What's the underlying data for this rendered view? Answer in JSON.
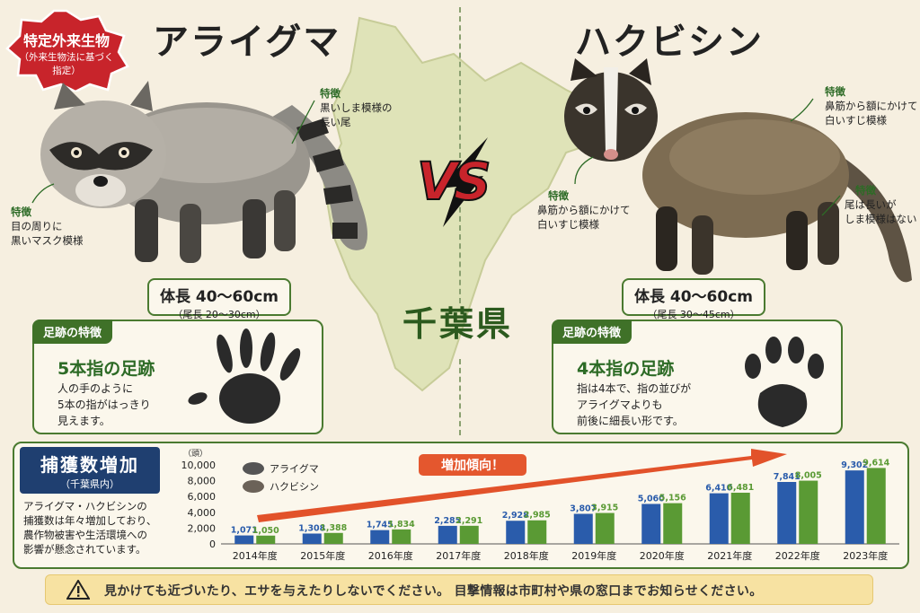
{
  "raccoon": {
    "name": "アライグマ",
    "badge_title": "特定外来生物",
    "badge_sub_1": "（外来生物法に基づく",
    "badge_sub_2": "指定）",
    "feature_tail": {
      "heading": "特徴",
      "line1": "黒いしま模様の",
      "line2": "長い尾"
    },
    "feature_face": {
      "heading": "特徴",
      "line1": "目の周りに",
      "line2": "黒いマスク模様"
    },
    "size_main": "体長 40～60cm",
    "size_sub": "（尾長 20～30cm）",
    "footprint_header": "足跡の特徴",
    "footprint_title": "5本指の足跡",
    "footprint_desc_1": "人の手のように",
    "footprint_desc_2": "5本の指がはっきり",
    "footprint_desc_3": "見えます。"
  },
  "civet": {
    "name": "ハクビシン",
    "feature_forehead_top": {
      "heading": "特徴",
      "line1": "鼻筋から額にかけて",
      "line2": "白いすじ模様"
    },
    "feature_forehead_side": {
      "heading": "特徴",
      "line1": "鼻筋から額にかけて",
      "line2": "白いすじ模様"
    },
    "feature_tail": {
      "heading": "特徴",
      "line1": "尾は長いが",
      "line2": "しま模様はない"
    },
    "size_main": "体長 40～60cm",
    "size_sub": "（尾長 30～45cm）",
    "footprint_header": "足跡の特徴",
    "footprint_title": "4本指の足跡",
    "footprint_desc_1": "指は4本で、指の並びが",
    "footprint_desc_2": "アライグマよりも",
    "footprint_desc_3": "前後に細長い形です。"
  },
  "vs_label": "VS",
  "prefecture": "千葉県",
  "chart_section": {
    "title": "捕獲数増加",
    "subtitle": "（千葉県内）",
    "desc_1": "アライグマ・ハクビシンの",
    "desc_2": "捕獲数は年々増加しており、",
    "desc_3": "農作物被害や生活環境への",
    "desc_4": "影響が懸念されています。",
    "trend_label": "増加傾向！"
  },
  "chart_data": {
    "type": "bar",
    "title": "",
    "xlabel": "",
    "ylabel": "（頭）",
    "ylim": [
      0,
      10000
    ],
    "yticks": [
      0,
      2000,
      4000,
      6000,
      8000,
      10000
    ],
    "ytick_labels": [
      "0",
      "2,000",
      "4,000",
      "6,000",
      "8,000",
      "10,000"
    ],
    "categories": [
      "2014年度",
      "2015年度",
      "2016年度",
      "2017年度",
      "2018年度",
      "2019年度",
      "2020年度",
      "2021年度",
      "2022年度",
      "2023年度"
    ],
    "legend_position": "top-left",
    "grid": false,
    "series": [
      {
        "name": "アライグマ",
        "color": "#2a5cab",
        "values": [
          1071,
          1308,
          1745,
          2285,
          2928,
          3807,
          5060,
          6410,
          7841,
          9302
        ],
        "labels": [
          "1,071",
          "1,308",
          "1,745",
          "2,285",
          "2,928",
          "3,807",
          "5,060",
          "6,410",
          "7,841",
          "9,302"
        ]
      },
      {
        "name": "ハクビシン",
        "color": "#5a9a34",
        "values": [
          1050,
          1388,
          1834,
          2291,
          2985,
          3915,
          5156,
          6481,
          8005,
          9614
        ],
        "labels": [
          "1,050",
          "1,388",
          "1,834",
          "2,291",
          "2,985",
          "3,915",
          "5,156",
          "6,481",
          "8,005",
          "9,614"
        ]
      }
    ]
  },
  "warning": {
    "text": "見かけても近づいたり、エサを与えたりしないでください。 目撃情報は市町村や県の窓口までお知らせください。",
    "icon": "warning-icon"
  },
  "colors": {
    "accent_green": "#3f7128",
    "raccoon_bar": "#2a5cab",
    "civet_bar": "#5a9a34",
    "badge_red": "#c8242b",
    "navy": "#1f3f70"
  }
}
